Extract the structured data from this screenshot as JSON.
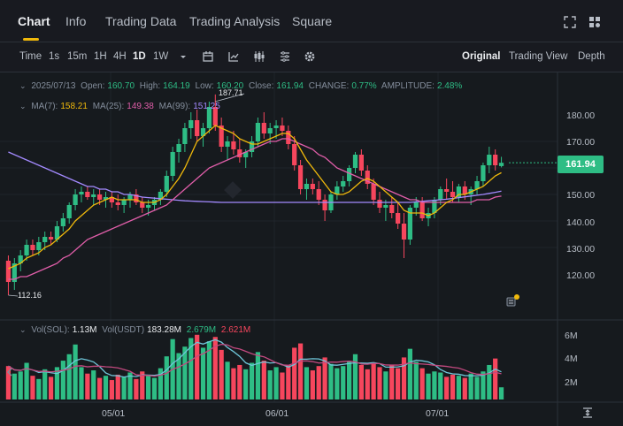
{
  "tabs": [
    {
      "label": "Chart"
    },
    {
      "label": "Info"
    },
    {
      "label": "Trading Data"
    },
    {
      "label": "Trading Analysis"
    },
    {
      "label": "Square"
    }
  ],
  "toolbar": {
    "intervals": [
      "Time",
      "1s",
      "15m",
      "1H",
      "4H",
      "1D",
      "1W"
    ],
    "active_interval": "1D",
    "views": [
      "Original",
      "Trading View",
      "Depth"
    ],
    "active_view": "Original",
    "icons": [
      "chevron-down-icon",
      "calendar-icon",
      "indicator-icon",
      "candles-icon",
      "template-icon",
      "settings-icon"
    ]
  },
  "ohlc": {
    "date": "2025/07/13",
    "open_label": "Open:",
    "open": "160.70",
    "high_label": "High:",
    "high": "164.19",
    "low_label": "Low:",
    "low": "160.20",
    "close_label": "Close:",
    "close": "161.94",
    "change_label": "CHANGE:",
    "change": "0.77%",
    "amplitude_label": "AMPLITUDE:",
    "amplitude": "2.48%"
  },
  "ma": {
    "ma7_label": "MA(7):",
    "ma7": "158.21",
    "ma25_label": "MA(25):",
    "ma25": "149.38",
    "ma99_label": "MA(99):",
    "ma99": "151.25"
  },
  "volume": {
    "sol_label": "Vol(SOL):",
    "sol": "1.13M",
    "usdt_label": "Vol(USDT)",
    "usdt": "183.28M",
    "ma1": "2.679M",
    "ma2": "2.621M"
  },
  "price_axis": [
    "180.00",
    "170.00",
    "160.00",
    "150.00",
    "140.00",
    "130.00",
    "120.00"
  ],
  "last_price": "161.94",
  "high_marker": "187.71",
  "low_marker": "112.16",
  "volume_axis": [
    "6M",
    "4M",
    "2M"
  ],
  "date_axis": [
    "05/01",
    "06/01",
    "07/01"
  ],
  "colors": {
    "up": "#2ebd85",
    "down": "#f6465d",
    "ma7": "#f0b90b",
    "ma25": "#e05ea9",
    "ma99": "#a38aff",
    "accent": "#f0b90b"
  },
  "chart_data": {
    "type": "candlestick",
    "symbol": "SOL/USDT",
    "interval": "1D",
    "ylim": [
      110,
      190
    ],
    "candles": [
      [
        125,
        127,
        112,
        117
      ],
      [
        117,
        126,
        114,
        124
      ],
      [
        124,
        129,
        121,
        127
      ],
      [
        127,
        133,
        125,
        131
      ],
      [
        131,
        133,
        127,
        129
      ],
      [
        129,
        134,
        127,
        132
      ],
      [
        132,
        136,
        129,
        134
      ],
      [
        134,
        136,
        131,
        133
      ],
      [
        133,
        140,
        132,
        138
      ],
      [
        138,
        143,
        136,
        141
      ],
      [
        141,
        147,
        139,
        146
      ],
      [
        146,
        152,
        144,
        150
      ],
      [
        150,
        153,
        147,
        151
      ],
      [
        151,
        153,
        148,
        149
      ],
      [
        149,
        152,
        146,
        150
      ],
      [
        150,
        152,
        146,
        148
      ],
      [
        148,
        151,
        145,
        149
      ],
      [
        149,
        151,
        145,
        147
      ],
      [
        147,
        150,
        144,
        146
      ],
      [
        146,
        149,
        143,
        148
      ],
      [
        148,
        151,
        145,
        150
      ],
      [
        150,
        152,
        146,
        147
      ],
      [
        147,
        149,
        143,
        145
      ],
      [
        145,
        148,
        142,
        146
      ],
      [
        146,
        149,
        144,
        148
      ],
      [
        148,
        152,
        146,
        151
      ],
      [
        151,
        159,
        149,
        157
      ],
      [
        157,
        168,
        155,
        166
      ],
      [
        166,
        171,
        162,
        169
      ],
      [
        169,
        177,
        166,
        175
      ],
      [
        175,
        181,
        171,
        178
      ],
      [
        178,
        182,
        170,
        172
      ],
      [
        172,
        177,
        168,
        175
      ],
      [
        175,
        185,
        173,
        183
      ],
      [
        183,
        187.71,
        174,
        176
      ],
      [
        176,
        179,
        166,
        168
      ],
      [
        168,
        172,
        163,
        170
      ],
      [
        170,
        174,
        165,
        167
      ],
      [
        167,
        171,
        162,
        164
      ],
      [
        164,
        167,
        160,
        166
      ],
      [
        166,
        172,
        164,
        170
      ],
      [
        170,
        179,
        168,
        177
      ],
      [
        177,
        181,
        171,
        173
      ],
      [
        173,
        177,
        169,
        175
      ],
      [
        175,
        178,
        171,
        176
      ],
      [
        176,
        179,
        172,
        174
      ],
      [
        174,
        176,
        167,
        169
      ],
      [
        169,
        172,
        159,
        161
      ],
      [
        161,
        163,
        150,
        152
      ],
      [
        152,
        156,
        148,
        154
      ],
      [
        154,
        156,
        150,
        152
      ],
      [
        152,
        155,
        146,
        148
      ],
      [
        148,
        150,
        140,
        144
      ],
      [
        144,
        151,
        143,
        150
      ],
      [
        150,
        155,
        148,
        153
      ],
      [
        153,
        157,
        151,
        155
      ],
      [
        155,
        161,
        153,
        160
      ],
      [
        160,
        166,
        158,
        165
      ],
      [
        165,
        167,
        157,
        159
      ],
      [
        159,
        161,
        152,
        154
      ],
      [
        154,
        156,
        146,
        148
      ],
      [
        148,
        151,
        143,
        145
      ],
      [
        145,
        148,
        140,
        146
      ],
      [
        146,
        149,
        141,
        143
      ],
      [
        143,
        147,
        137,
        139
      ],
      [
        139,
        143,
        126,
        133
      ],
      [
        133,
        146,
        131,
        145
      ],
      [
        145,
        149,
        142,
        147
      ],
      [
        147,
        149,
        140,
        141
      ],
      [
        141,
        145,
        138,
        143
      ],
      [
        143,
        149,
        141,
        148
      ],
      [
        148,
        153,
        146,
        152
      ],
      [
        152,
        156,
        148,
        151
      ],
      [
        151,
        155,
        147,
        149
      ],
      [
        149,
        154,
        147,
        153
      ],
      [
        153,
        155,
        148,
        150
      ],
      [
        150,
        153,
        146,
        152
      ],
      [
        152,
        157,
        150,
        155
      ],
      [
        155,
        162,
        153,
        161
      ],
      [
        161,
        168,
        158,
        165
      ],
      [
        165,
        167,
        159,
        161
      ],
      [
        160.7,
        164.19,
        160.2,
        161.94
      ]
    ],
    "ma7_series": [
      122,
      123,
      124,
      126,
      127,
      128,
      130,
      131,
      133,
      135,
      137,
      140,
      142,
      144,
      146,
      147,
      148,
      149,
      148,
      148,
      148,
      148,
      147,
      147,
      147,
      148,
      150,
      153,
      156,
      160,
      165,
      170,
      172,
      174,
      176,
      175,
      174,
      173,
      171,
      170,
      169,
      169,
      170,
      171,
      172,
      173,
      173,
      171,
      167,
      163,
      160,
      157,
      154,
      151,
      150,
      150,
      151,
      153,
      155,
      156,
      155,
      153,
      151,
      149,
      147,
      144,
      143,
      143,
      143,
      142,
      143,
      145,
      147,
      148,
      150,
      150,
      151,
      152,
      153,
      155,
      157,
      158.21
    ],
    "ma25_series": [
      118,
      118,
      119,
      119,
      120,
      121,
      122,
      123,
      124,
      126,
      127,
      129,
      131,
      133,
      134,
      135,
      136,
      137,
      138,
      139,
      140,
      141,
      142,
      143,
      144,
      145,
      146,
      148,
      150,
      152,
      154,
      156,
      158,
      160,
      161,
      162,
      163,
      164,
      165,
      166,
      167,
      168,
      169,
      170,
      170,
      171,
      171,
      170,
      169,
      168,
      167,
      165,
      164,
      162,
      160,
      159,
      158,
      157,
      156,
      155,
      154,
      153,
      152,
      151,
      150,
      149,
      148,
      148,
      147,
      147,
      147,
      147,
      147,
      147,
      147,
      147,
      147,
      148,
      148,
      148,
      149,
      149.38
    ],
    "ma99_series": [
      166,
      165,
      164,
      163,
      162,
      161,
      160,
      159,
      158,
      157,
      156,
      155,
      154,
      153,
      153,
      152,
      152,
      151,
      151,
      150,
      150,
      149.5,
      149,
      148.8,
      148.6,
      148.4,
      148.2,
      148,
      147.8,
      147.6,
      147.5,
      147.4,
      147.3,
      147.2,
      147.1,
      147,
      147,
      147,
      147,
      147,
      147,
      147,
      147,
      147,
      147,
      147,
      147,
      147,
      147,
      147,
      147,
      147,
      147,
      147,
      147,
      147,
      147,
      147,
      147,
      147,
      147,
      147,
      147,
      147,
      147,
      147,
      147,
      147.2,
      147.4,
      147.6,
      147.8,
      148,
      148.2,
      148.5,
      148.8,
      149.1,
      149.4,
      149.7,
      150,
      150.4,
      150.8,
      151.25
    ],
    "volumes": [
      3.1,
      2.4,
      2.6,
      3.4,
      2.2,
      1.9,
      2.8,
      2.1,
      3.0,
      3.6,
      4.2,
      5.1,
      3.0,
      2.4,
      2.7,
      2.0,
      2.2,
      1.8,
      2.3,
      2.1,
      2.5,
      1.9,
      2.6,
      2.2,
      2.0,
      2.9,
      4.0,
      5.6,
      4.3,
      4.9,
      5.7,
      6.0,
      4.8,
      5.4,
      5.8,
      4.6,
      3.5,
      2.9,
      3.2,
      2.8,
      3.4,
      4.4,
      3.6,
      2.7,
      3.0,
      2.5,
      3.2,
      4.8,
      5.2,
      3.0,
      2.7,
      3.1,
      3.9,
      3.3,
      2.9,
      3.1,
      3.5,
      4.2,
      3.2,
      2.8,
      3.4,
      3.0,
      2.6,
      3.2,
      2.9,
      3.9,
      4.7,
      3.5,
      2.9,
      2.4,
      2.6,
      2.5,
      2.1,
      2.3,
      2.2,
      2.0,
      2.4,
      2.1,
      2.6,
      3.2,
      3.8,
      1.13
    ],
    "volume_ylim": [
      0,
      7
    ],
    "x_labels": [
      "05/01",
      "06/01",
      "07/01"
    ]
  }
}
